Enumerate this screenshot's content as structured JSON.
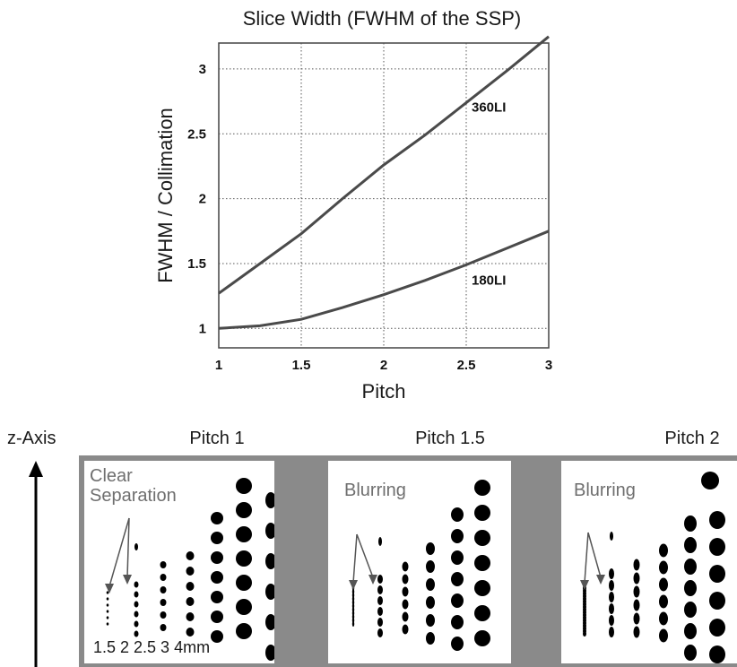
{
  "chart_data": {
    "type": "line",
    "title": "Slice Width  (FWHM of the SSP)",
    "xlabel": "Pitch",
    "ylabel": "FWHM / Collimation",
    "xlim": [
      1,
      3
    ],
    "ylim": [
      0.85,
      3.2
    ],
    "xticks": [
      "1",
      "1.5",
      "2",
      "2.5",
      "3"
    ],
    "yticks": [
      "1",
      "1.5",
      "2",
      "2.5",
      "3"
    ],
    "grid": true,
    "series": [
      {
        "name": "360LI",
        "x": [
          1,
          1.25,
          1.5,
          1.75,
          2,
          2.25,
          2.5,
          2.75,
          3
        ],
        "y": [
          1.27,
          1.5,
          1.73,
          2.0,
          2.26,
          2.49,
          2.74,
          2.99,
          3.25
        ]
      },
      {
        "name": "180LI",
        "x": [
          1,
          1.25,
          1.5,
          1.75,
          2,
          2.25,
          2.5,
          2.75,
          3
        ],
        "y": [
          1.0,
          1.02,
          1.07,
          1.16,
          1.26,
          1.37,
          1.49,
          1.62,
          1.75
        ]
      }
    ]
  },
  "lower": {
    "z_axis_label": "z-Axis",
    "panels": [
      {
        "title": "Pitch 1",
        "annotation": "Clear Separation",
        "size_labels": "1.5  2  2.5  3  4mm"
      },
      {
        "title": "Pitch 1.5",
        "annotation": "Blurring"
      },
      {
        "title": "Pitch 2",
        "annotation": "Blurring"
      }
    ]
  },
  "colors": {
    "curve": "#4a4a4a",
    "panel_border": "#8a8a8a",
    "annotation": "#6f6f6f"
  }
}
